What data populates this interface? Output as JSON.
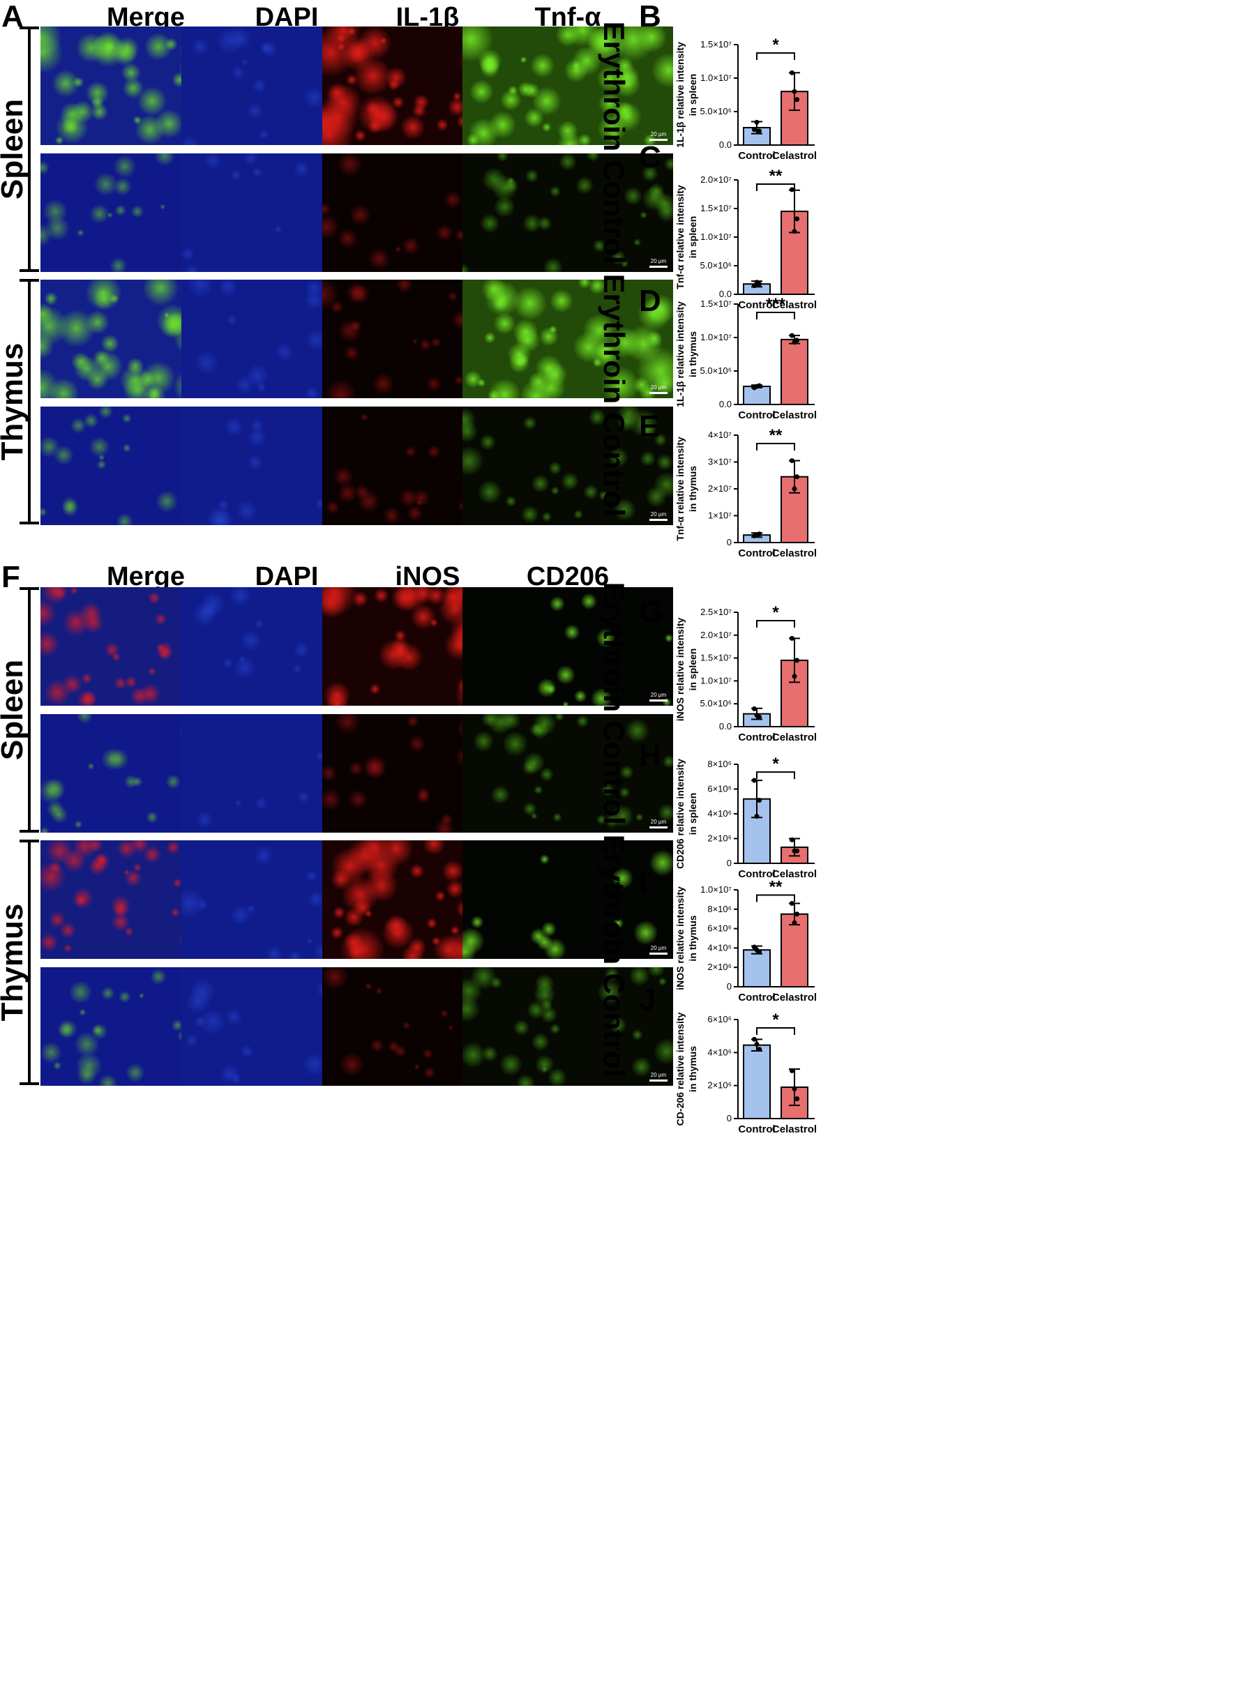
{
  "panels": {
    "A": "A",
    "B": "B",
    "C": "C",
    "D": "D",
    "E": "E",
    "F": "F",
    "G": "G",
    "H": "H",
    "I": "I",
    "J": "J"
  },
  "top": {
    "columns": [
      "Merge",
      "DAPI",
      "IL-1β",
      "Tnf-α"
    ],
    "tissues": [
      "Spleen",
      "Thymus"
    ],
    "conditions": [
      "Erythroin",
      "Control",
      "Erythroin",
      "Control"
    ]
  },
  "bottom": {
    "columns": [
      "Merge",
      "DAPI",
      "iNOS",
      "CD206"
    ],
    "tissues": [
      "Spleen",
      "Thymus"
    ],
    "conditions": [
      "Erythroin",
      "Control",
      "Erythroin",
      "Control"
    ]
  },
  "scale_bar": "20 μm",
  "colors": {
    "control_bar": "#a4c2ec",
    "celastrol_bar": "#e86f6f",
    "dapi": "#12209e",
    "il1b": "#e0221b",
    "tnfa": "#5fe61e"
  },
  "chart_data": [
    {
      "panel": "B",
      "type": "bar",
      "categories": [
        "Control",
        "Celastrol"
      ],
      "values": [
        2600000,
        8000000
      ],
      "errors": [
        900000,
        2800000
      ],
      "points": [
        [
          2300000,
          2100000,
          3400000
        ],
        [
          10800000,
          6800000,
          8000000
        ]
      ],
      "ylabel": [
        "1L-1β relative intensity",
        "in spleen"
      ],
      "yticks": [
        "0.0",
        "5.0×10⁶",
        "1.0×10⁷",
        "1.5×10⁷"
      ],
      "ylim": [
        0,
        15000000
      ],
      "significance": "*"
    },
    {
      "panel": "C",
      "type": "bar",
      "categories": [
        "Control",
        "Celastrol"
      ],
      "values": [
        1800000,
        14500000
      ],
      "errors": [
        500000,
        3700000
      ],
      "points": [
        [
          1500000,
          1800000,
          2100000
        ],
        [
          18300000,
          13200000,
          11000000
        ]
      ],
      "ylabel": [
        "Tnf-α relative intensity",
        "in spleen"
      ],
      "yticks": [
        "0.0",
        "5.0×10⁶",
        "1.0×10⁷",
        "1.5×10⁷",
        "2.0×10⁷"
      ],
      "ylim": [
        0,
        20000000
      ],
      "significance": "**"
    },
    {
      "panel": "D",
      "type": "bar",
      "categories": [
        "Control",
        "Celastrol"
      ],
      "values": [
        2700000,
        9700000
      ],
      "errors": [
        200000,
        600000
      ],
      "points": [
        [
          2500000,
          2800000,
          2700000
        ],
        [
          10300000,
          9600000,
          9300000
        ]
      ],
      "ylabel": [
        "1L-1β relative intensity",
        "in thymus"
      ],
      "yticks": [
        "0.0",
        "5.0×10⁶",
        "1.0×10⁷",
        "1.5×10⁷"
      ],
      "ylim": [
        0,
        15000000
      ],
      "significance": "***"
    },
    {
      "panel": "E",
      "type": "bar",
      "categories": [
        "Control",
        "Celastrol"
      ],
      "values": [
        2800000,
        24500000
      ],
      "errors": [
        800000,
        6000000
      ],
      "points": [
        [
          2500000,
          3200000,
          2800000
        ],
        [
          30500000,
          24500000,
          20000000
        ]
      ],
      "ylabel": [
        "Tnf-α relative intensity",
        "in thymus"
      ],
      "yticks": [
        "0",
        "1×10⁷",
        "2×10⁷",
        "3×10⁷",
        "4×10⁷"
      ],
      "ylim": [
        0,
        40000000
      ],
      "significance": "**"
    },
    {
      "panel": "G",
      "type": "bar",
      "categories": [
        "Control",
        "Celastrol"
      ],
      "values": [
        2800000,
        14500000
      ],
      "errors": [
        1200000,
        4800000
      ],
      "points": [
        [
          3900000,
          2100000,
          2500000
        ],
        [
          19300000,
          14500000,
          11000000
        ]
      ],
      "ylabel": [
        "iNOS relative intensity",
        "in spleen"
      ],
      "yticks": [
        "0.0",
        "5.0×10⁶",
        "1.0×10⁷",
        "1.5×10⁷",
        "2.0×10⁷",
        "2.5×10⁷"
      ],
      "ylim": [
        0,
        25000000
      ],
      "significance": "*"
    },
    {
      "panel": "H",
      "type": "bar",
      "categories": [
        "Control",
        "Celastrol"
      ],
      "values": [
        5200000,
        1300000
      ],
      "errors": [
        1500000,
        700000
      ],
      "points": [
        [
          6700000,
          5100000,
          3800000
        ],
        [
          1900000,
          1000000,
          1000000
        ]
      ],
      "ylabel": [
        "CD206 relative intensity",
        "in spleen"
      ],
      "yticks": [
        "0",
        "2×10⁶",
        "4×10⁶",
        "6×10⁶",
        "8×10⁶"
      ],
      "ylim": [
        0,
        8000000
      ],
      "significance": "*"
    },
    {
      "panel": "I",
      "type": "bar",
      "categories": [
        "Control",
        "Celastrol"
      ],
      "values": [
        3800000,
        7500000
      ],
      "errors": [
        400000,
        1100000
      ],
      "points": [
        [
          4100000,
          3600000,
          3800000
        ],
        [
          8600000,
          7500000,
          6600000
        ]
      ],
      "ylabel": [
        "iNOS relative intensity",
        "in thymus"
      ],
      "yticks": [
        "0",
        "2×10⁶",
        "4×10⁶",
        "6×10⁶",
        "8×10⁶",
        "1.0×10⁷"
      ],
      "ylim": [
        0,
        10000000
      ],
      "significance": "**"
    },
    {
      "panel": "J",
      "type": "bar",
      "categories": [
        "Control",
        "Celastrol"
      ],
      "values": [
        4450000,
        1900000
      ],
      "errors": [
        350000,
        1100000
      ],
      "points": [
        [
          4800000,
          4200000,
          4500000
        ],
        [
          2900000,
          1200000,
          1800000
        ]
      ],
      "ylabel": [
        "CD-206 relative intensity",
        "in thymus"
      ],
      "yticks": [
        "0",
        "2×10⁶",
        "4×10⁶",
        "6×10⁶"
      ],
      "ylim": [
        0,
        6000000
      ],
      "significance": "*"
    }
  ]
}
